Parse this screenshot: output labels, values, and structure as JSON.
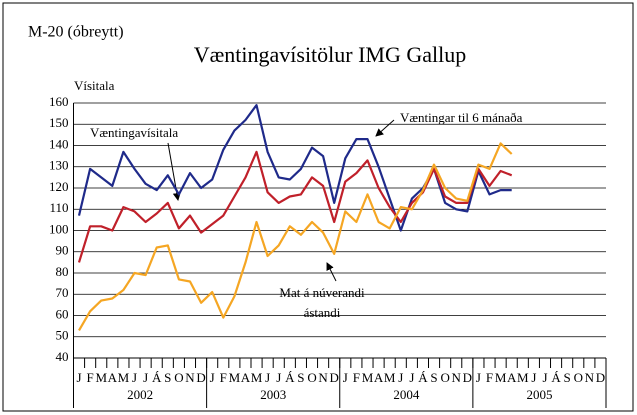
{
  "chart_data": {
    "type": "line",
    "code": "M-20  (óbreytt)",
    "title": "Væntingavísitölur IMG Gallup",
    "y_label": "Vísitala",
    "categories": [
      "J",
      "F",
      "M",
      "A",
      "M",
      "J",
      "J",
      "Á",
      "S",
      "O",
      "N",
      "D",
      "J",
      "F",
      "M",
      "A",
      "M",
      "J",
      "J",
      "Á",
      "S",
      "O",
      "N",
      "D",
      "J",
      "F",
      "M",
      "A",
      "M",
      "J",
      "J",
      "Á",
      "S",
      "O",
      "N",
      "D",
      "J",
      "F",
      "M",
      "A",
      "M",
      "J",
      "J",
      "Á",
      "S",
      "O",
      "N",
      "D"
    ],
    "years": [
      "2002",
      "2003",
      "2004",
      "2005"
    ],
    "series": [
      {
        "name": "Væntingar til 6 mánaða",
        "color": "#1f2a8a",
        "values": [
          107,
          129,
          125,
          121,
          137,
          129,
          122,
          119,
          126,
          117,
          127,
          120,
          124,
          138,
          147,
          152,
          159,
          137,
          125,
          124,
          129,
          139,
          135,
          113,
          134,
          143,
          143,
          130,
          115,
          100,
          115,
          120,
          129,
          113,
          110,
          109,
          128,
          117,
          119,
          119,
          null,
          null,
          null,
          null,
          null,
          null,
          null,
          null
        ]
      },
      {
        "name": "Væntingavísitala",
        "color": "#c0202a",
        "values": [
          85,
          102,
          102,
          100,
          111,
          109,
          104,
          108,
          113,
          101,
          107,
          99,
          103,
          107,
          116,
          125,
          137,
          118,
          113,
          116,
          117,
          125,
          121,
          104,
          123,
          127,
          133,
          120,
          111,
          104,
          113,
          118,
          129,
          116,
          113,
          113,
          129,
          121,
          128,
          126,
          null,
          null,
          null,
          null,
          null,
          null,
          null,
          null
        ]
      },
      {
        "name": "Mat á núverandi ástandi",
        "color": "#f5a623",
        "values": [
          53,
          62,
          67,
          68,
          72,
          80,
          79,
          92,
          93,
          77,
          76,
          66,
          71,
          59,
          69,
          85,
          104,
          88,
          93,
          102,
          98,
          104,
          99,
          89,
          109,
          104,
          117,
          104,
          101,
          111,
          110,
          119,
          131,
          120,
          115,
          114,
          131,
          129,
          141,
          136,
          null,
          null,
          null,
          null,
          null,
          null,
          null,
          null
        ]
      }
    ],
    "annotations": [
      "Væntingavísitala",
      "Væntingar til 6 mánaða",
      "Mat á núverandi",
      "ástandi"
    ],
    "ylim": [
      40,
      160
    ],
    "yticks": [
      40,
      50,
      60,
      70,
      80,
      90,
      100,
      110,
      120,
      130,
      140,
      150,
      160
    ],
    "grid": true
  }
}
